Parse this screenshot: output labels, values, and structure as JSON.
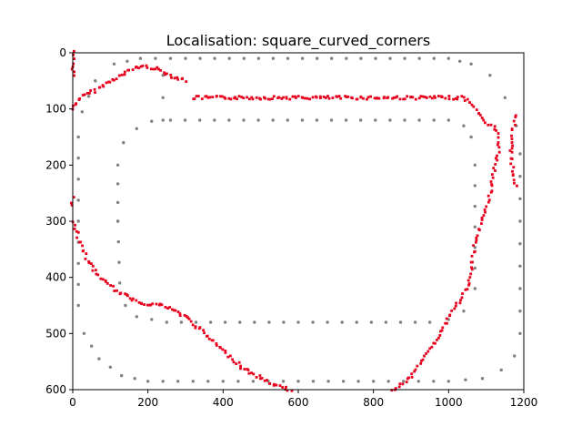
{
  "chart_data": {
    "type": "scatter",
    "title": "Localisation: square_curved_corners",
    "xlabel": "",
    "ylabel": "",
    "xlim": [
      0,
      1200
    ],
    "ylim": [
      600,
      0
    ],
    "y_inverted": true,
    "grid": false,
    "x_ticks": [
      0,
      200,
      400,
      600,
      800,
      1000,
      1200
    ],
    "y_ticks": [
      0,
      100,
      200,
      300,
      400,
      500,
      600
    ],
    "series": [
      {
        "color": "#808080",
        "marker": "circle",
        "paths": [
          [
            [
              60,
              50
            ],
            [
              110,
              20
            ],
            [
              180,
              10
            ],
            [
              300,
              10
            ],
            [
              1000,
              10
            ],
            [
              1060,
              20
            ],
            [
              1110,
              40
            ],
            [
              1150,
              80
            ],
            [
              1180,
              130
            ],
            [
              1190,
              180
            ],
            [
              1190,
              500
            ],
            [
              1175,
              540
            ],
            [
              1140,
              565
            ],
            [
              1090,
              580
            ],
            [
              1000,
              585
            ],
            [
              200,
              585
            ],
            [
              130,
              575
            ],
            [
              70,
              545
            ],
            [
              30,
              500
            ],
            [
              15,
              450
            ],
            [
              15,
              150
            ],
            [
              25,
              105
            ],
            [
              60,
              50
            ]
          ],
          [
            [
              120,
              300
            ],
            [
              120,
              200
            ],
            [
              135,
              160
            ],
            [
              170,
              135
            ],
            [
              210,
              122
            ],
            [
              260,
              120
            ],
            [
              1000,
              120
            ],
            [
              1040,
              130
            ],
            [
              1060,
              150
            ],
            [
              1070,
              200
            ],
            [
              1070,
              420
            ],
            [
              1040,
              460
            ],
            [
              1000,
              475
            ],
            [
              950,
              480
            ],
            [
              250,
              480
            ],
            [
              170,
              470
            ],
            [
              140,
              450
            ],
            [
              125,
              410
            ],
            [
              120,
              300
            ]
          ],
          [
            [
              240,
              40
            ],
            [
              240,
              120
            ]
          ]
        ]
      },
      {
        "color": "#e8001c",
        "marker": "square",
        "paths": [
          [
            [
              0,
              100
            ],
            [
              20,
              80
            ],
            [
              50,
              70
            ],
            [
              90,
              55
            ],
            [
              130,
              40
            ],
            [
              170,
              25
            ],
            [
              200,
              25
            ],
            [
              230,
              30
            ],
            [
              260,
              40
            ],
            [
              300,
              50
            ]
          ],
          [
            [
              320,
              80
            ],
            [
              500,
              80
            ],
            [
              800,
              80
            ],
            [
              1040,
              80
            ],
            [
              1060,
              90
            ],
            [
              1080,
              105
            ],
            [
              1100,
              125
            ],
            [
              1120,
              130
            ],
            [
              1130,
              145
            ],
            [
              1135,
              170
            ],
            [
              1125,
              200
            ],
            [
              1110,
              250
            ],
            [
              1090,
              300
            ],
            [
              1070,
              340
            ],
            [
              1060,
              400
            ],
            [
              1040,
              430
            ],
            [
              1000,
              470
            ],
            [
              960,
              520
            ],
            [
              920,
              560
            ],
            [
              880,
              590
            ],
            [
              850,
              600
            ]
          ],
          [
            [
              0,
              300
            ],
            [
              20,
              340
            ],
            [
              40,
              370
            ],
            [
              60,
              390
            ],
            [
              90,
              410
            ],
            [
              130,
              430
            ],
            [
              180,
              445
            ],
            [
              240,
              450
            ],
            [
              300,
              470
            ],
            [
              350,
              500
            ],
            [
              400,
              530
            ],
            [
              450,
              560
            ],
            [
              500,
              580
            ],
            [
              550,
              595
            ],
            [
              580,
              600
            ]
          ],
          [
            [
              1180,
              110
            ],
            [
              1170,
              140
            ],
            [
              1165,
              180
            ],
            [
              1175,
              220
            ],
            [
              1180,
              240
            ]
          ],
          [
            [
              0,
              0
            ],
            [
              0,
              40
            ]
          ],
          [
            [
              0,
              260
            ],
            [
              0,
              270
            ]
          ]
        ]
      }
    ]
  }
}
